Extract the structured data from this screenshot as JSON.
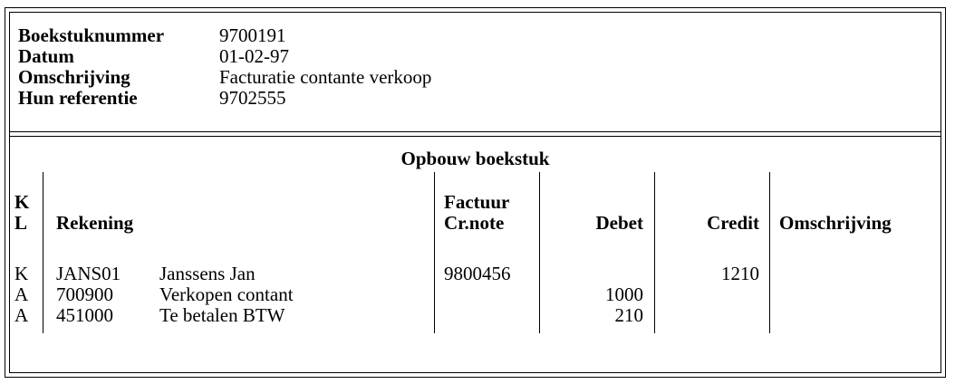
{
  "header": {
    "fields": [
      {
        "label": "Boekstuknummer",
        "value": "9700191"
      },
      {
        "label": "Datum",
        "value": "01-02-97"
      },
      {
        "label": "Omschrijving",
        "value": "Facturatie contante verkoop"
      },
      {
        "label": "Hun referentie",
        "value": "9702555"
      }
    ]
  },
  "section": {
    "title": "Opbouw boekstuk",
    "columns": {
      "kl_top": "K",
      "kl_bottom": "L",
      "rekening": "Rekening",
      "factuur_top": "Factuur",
      "factuur_bottom": "Cr.note",
      "debet": "Debet",
      "credit": "Credit",
      "omschrijving": "Omschrijving"
    },
    "rows": [
      {
        "kl": "K",
        "code": "JANS01",
        "name": "Janssens Jan",
        "factuur": "9800456",
        "debet": "",
        "credit": "1210",
        "omschrijving": ""
      },
      {
        "kl": "A",
        "code": "700900",
        "name": "Verkopen contant",
        "factuur": "",
        "debet": "1000",
        "credit": "",
        "omschrijving": ""
      },
      {
        "kl": "A",
        "code": "451000",
        "name": "Te betalen BTW",
        "factuur": "",
        "debet": "210",
        "credit": "",
        "omschrijving": ""
      }
    ]
  }
}
